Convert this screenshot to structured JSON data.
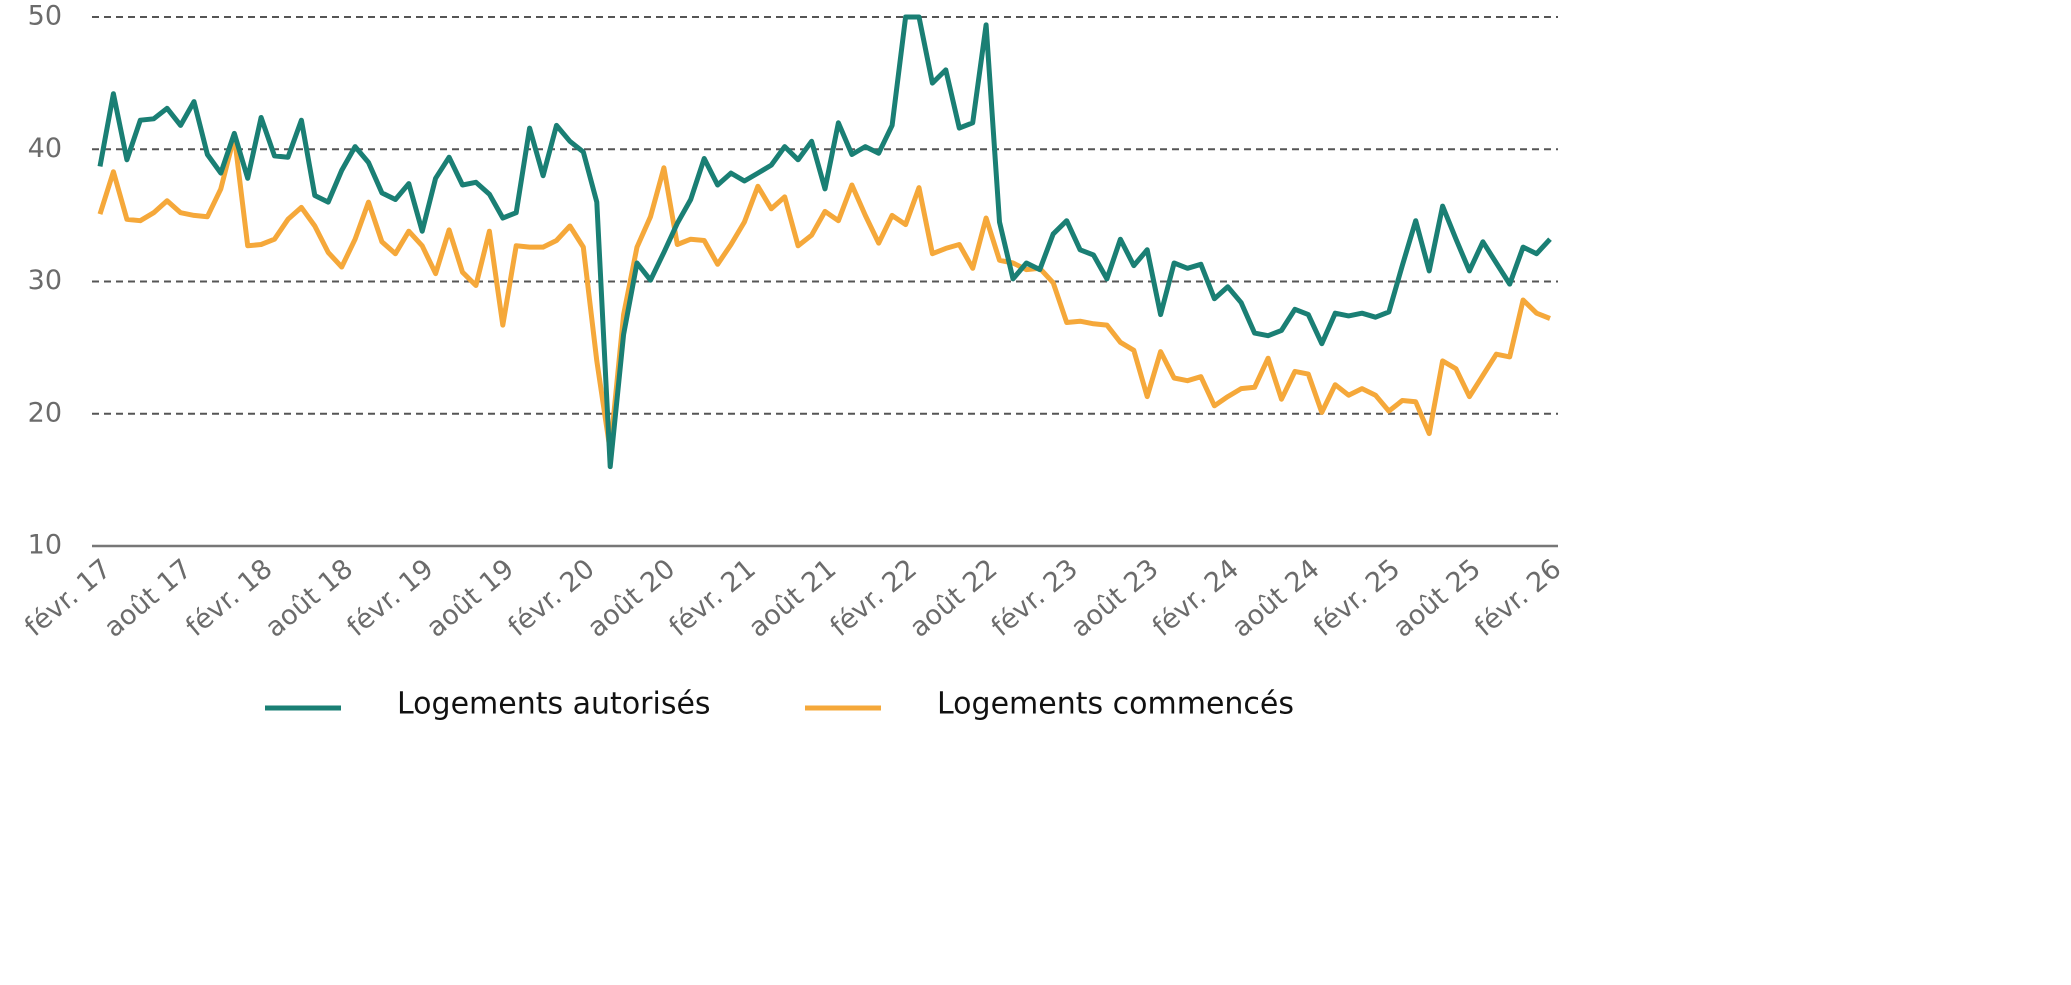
{
  "chart_data": {
    "type": "line",
    "categories": [
      "févr. 17",
      null,
      null,
      null,
      null,
      null,
      "août 17",
      null,
      null,
      null,
      null,
      null,
      "févr. 18",
      null,
      null,
      null,
      null,
      null,
      "août 18",
      null,
      null,
      null,
      null,
      null,
      "févr. 19",
      null,
      null,
      null,
      null,
      null,
      "août 19",
      null,
      null,
      null,
      null,
      null,
      "févr. 20",
      null,
      null,
      null,
      null,
      null,
      "août 20",
      null,
      null,
      null,
      null,
      null,
      "févr. 21",
      null,
      null,
      null,
      null,
      null,
      "août 21",
      null,
      null,
      null,
      null,
      null,
      "févr. 22",
      null,
      null,
      null,
      null,
      null,
      "août 22",
      null,
      null,
      null,
      null,
      null,
      "févr. 23",
      null,
      null,
      null,
      null,
      null,
      "août 23",
      null,
      null,
      null,
      null,
      null,
      "févr. 24",
      null,
      null,
      null,
      null,
      null,
      "août 24",
      null,
      null,
      null,
      null,
      null,
      "févr. 25",
      null,
      null,
      null,
      null,
      null,
      "août 25",
      null,
      null,
      null,
      null,
      null,
      "févr. 26"
    ],
    "series": [
      {
        "name": "Logements autorisés",
        "color": "#1a7f74",
        "values": [
          38.7,
          44.2,
          39.2,
          42.2,
          42.3,
          43.1,
          41.8,
          43.6,
          39.6,
          38.2,
          41.2,
          37.8,
          42.4,
          39.5,
          39.4,
          42.2,
          36.5,
          36.0,
          38.4,
          40.2,
          39.0,
          36.7,
          36.2,
          37.4,
          33.8,
          37.8,
          39.4,
          37.3,
          37.5,
          36.6,
          34.8,
          35.2,
          41.6,
          38.0,
          41.8,
          40.6,
          39.8,
          36.0,
          16.0,
          26.0,
          31.4,
          30.1,
          32.2,
          34.4,
          36.2,
          39.3,
          37.3,
          38.2,
          37.6,
          38.2,
          38.8,
          40.2,
          39.2,
          40.6,
          37.0,
          42.0,
          39.6,
          40.2,
          39.7,
          41.8,
          50.0,
          50.0,
          45.0,
          46.0,
          41.6,
          42.0,
          49.4,
          34.5,
          30.2,
          31.4,
          30.9,
          33.6,
          34.6,
          32.4,
          32.0,
          30.2,
          33.2,
          31.2,
          32.4,
          27.5,
          31.4,
          31.0,
          31.3,
          28.7,
          29.6,
          28.4,
          26.1,
          25.9,
          26.3,
          27.9,
          27.5,
          25.3,
          27.6,
          27.4,
          27.6,
          27.3,
          27.7,
          31.2,
          34.6,
          30.8,
          35.7,
          33.2,
          30.8,
          33.0,
          31.4,
          29.8,
          32.6,
          32.1,
          33.2
        ]
      },
      {
        "name": "Logements commencés",
        "color": "#f5a83a",
        "values": [
          35.1,
          38.3,
          34.7,
          34.6,
          35.2,
          36.1,
          35.2,
          35.0,
          34.9,
          37.0,
          41.0,
          32.7,
          32.8,
          33.2,
          34.7,
          35.6,
          34.2,
          32.2,
          31.1,
          33.2,
          36.0,
          33.0,
          32.1,
          33.8,
          32.7,
          30.6,
          33.9,
          30.7,
          29.7,
          33.8,
          26.7,
          32.7,
          32.6,
          32.6,
          33.1,
          34.2,
          32.6,
          24.0,
          17.2,
          27.5,
          32.6,
          34.9,
          38.6,
          32.8,
          33.2,
          33.1,
          31.3,
          32.8,
          34.5,
          37.2,
          35.5,
          36.4,
          32.7,
          33.5,
          35.3,
          34.6,
          37.3,
          35.0,
          32.9,
          35.0,
          34.3,
          37.1,
          32.1,
          32.5,
          32.8,
          31.0,
          34.8,
          31.6,
          31.4,
          30.9,
          31.0,
          29.9,
          26.9,
          27.0,
          26.8,
          26.7,
          25.4,
          24.8,
          21.3,
          24.7,
          22.7,
          22.5,
          22.8,
          20.6,
          21.3,
          21.9,
          22.0,
          24.2,
          21.1,
          23.2,
          23.0,
          20.1,
          22.2,
          21.4,
          21.9,
          21.4,
          20.2,
          21.0,
          20.9,
          18.5,
          24.0,
          23.4,
          21.3,
          22.9,
          24.5,
          24.3,
          28.6,
          27.6,
          27.2
        ]
      }
    ],
    "ylim": [
      10,
      50
    ],
    "yticks": [
      10,
      20,
      30,
      40,
      50
    ],
    "grid": true
  }
}
